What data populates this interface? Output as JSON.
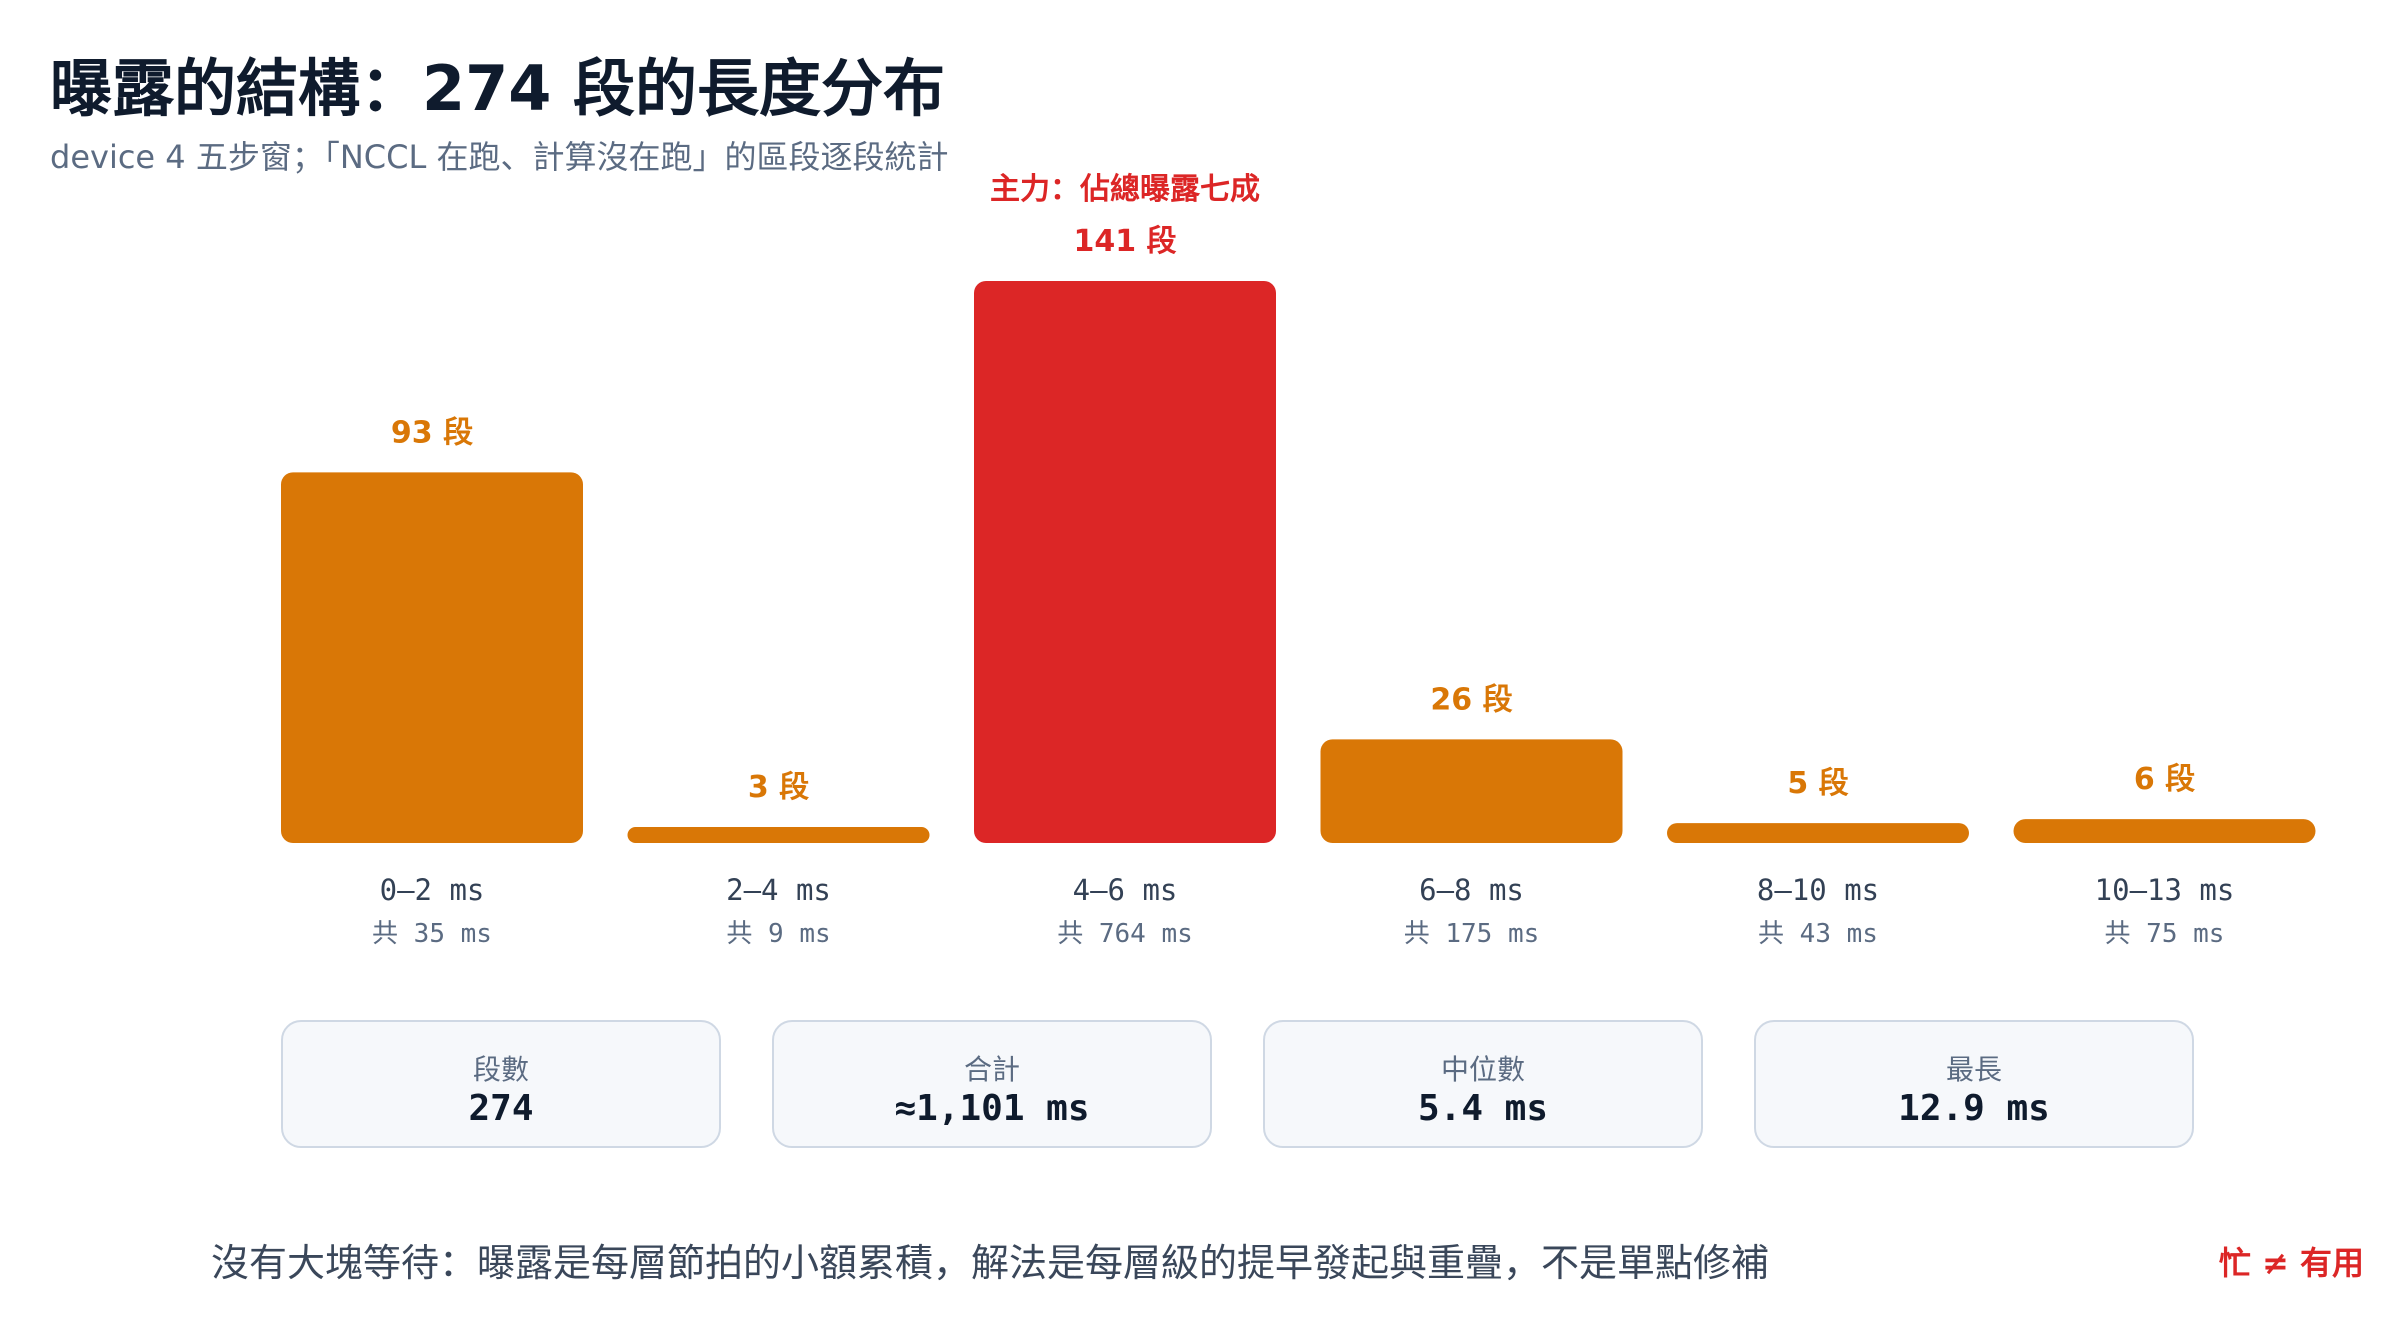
{
  "header": {
    "title": "曝露的結構：274 段的長度分布",
    "subtitle": "device 4 五步窗；「NCCL 在跑、計算沒在跑」的區段逐段統計"
  },
  "chart_data": {
    "type": "bar",
    "categories": [
      "0–2 ms",
      "2–4 ms",
      "4–6 ms",
      "6–8 ms",
      "8–10 ms",
      "10–13 ms"
    ],
    "values": [
      93,
      3,
      141,
      26,
      5,
      6
    ],
    "value_labels": [
      "93 段",
      "3 段",
      "141 段",
      "26 段",
      "5 段",
      "6 段"
    ],
    "totals": [
      "共 35 ms",
      "共 9 ms",
      "共 764 ms",
      "共 175 ms",
      "共 43 ms",
      "共 75 ms"
    ],
    "highlight_index": 2,
    "highlight_annotation": "主力：佔總曝露七成",
    "colors": {
      "default": "#d97706",
      "highlight": "#dc2626"
    },
    "ylim": [
      0,
      141
    ],
    "grid": false
  },
  "stats": [
    {
      "label": "段數",
      "value": "274"
    },
    {
      "label": "合計",
      "value": "≈1,101 ms"
    },
    {
      "label": "中位數",
      "value": "5.4 ms"
    },
    {
      "label": "最長",
      "value": "12.9 ms"
    }
  ],
  "footer": {
    "note": "沒有大塊等待：曝露是每層節拍的小額累積，解法是每層級的提早發起與重疊，不是單點修補",
    "badge": "忙 ≠ 有用"
  },
  "colors": {
    "title": "#0f1b2d",
    "muted": "#5b6b82",
    "accent": "#dc2626"
  }
}
